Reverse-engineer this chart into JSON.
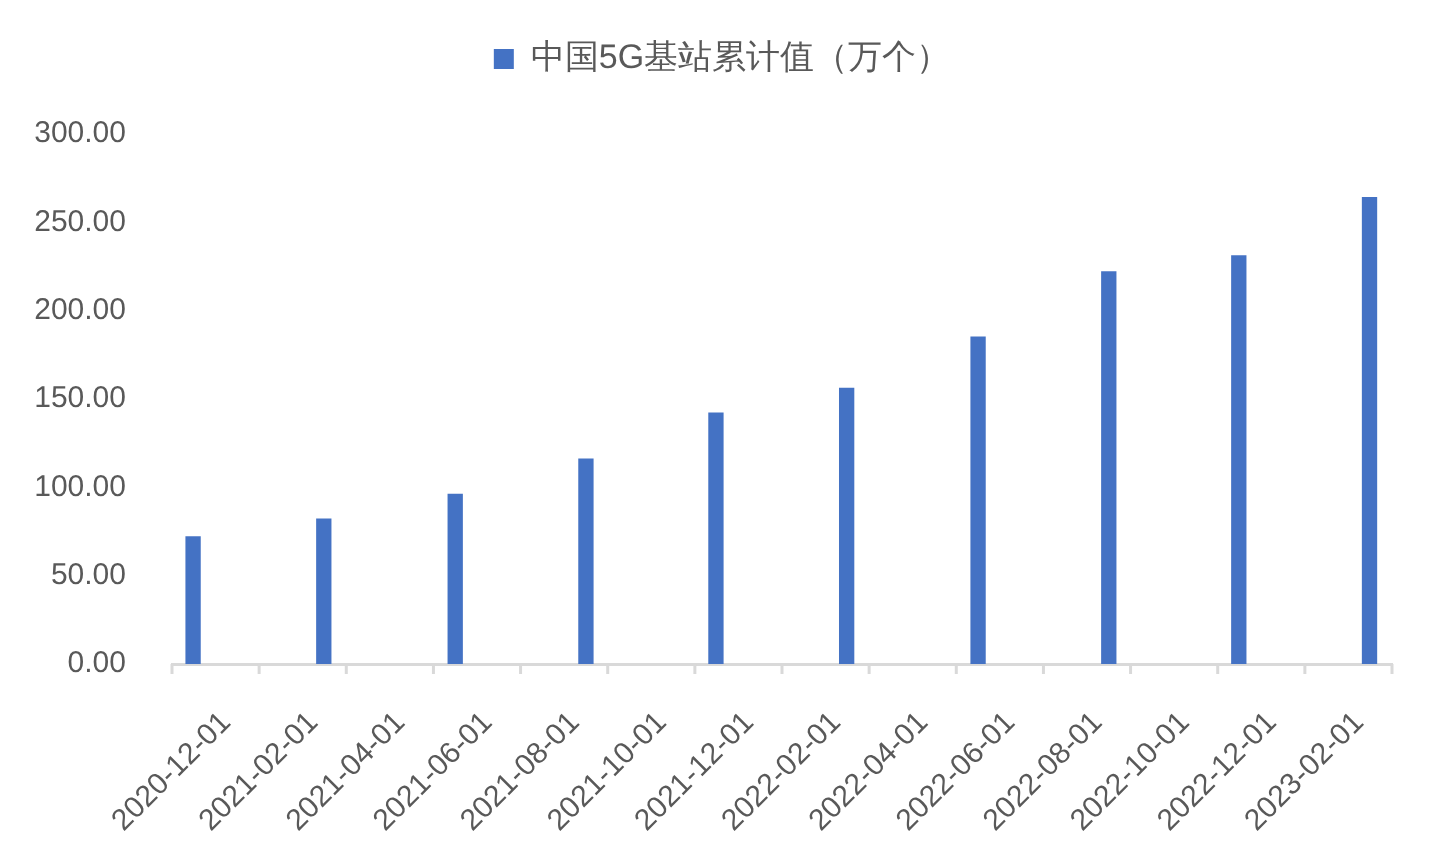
{
  "chart_data": {
    "type": "bar",
    "x": [
      "2020-12-16",
      "2021-03-16",
      "2021-06-16",
      "2021-09-16",
      "2021-12-16",
      "2022-03-16",
      "2022-06-16",
      "2022-09-16",
      "2022-12-16",
      "2023-03-16"
    ],
    "series": [
      {
        "name": "中国5G基站累计值（万个）",
        "color": "#4472c4",
        "values": [
          72,
          82,
          96,
          116,
          142,
          156,
          185,
          222,
          231,
          264
        ]
      }
    ],
    "xlim": [
      "2020-12-01",
      "2023-04-01"
    ],
    "xticks": [
      "2020-12-01",
      "2021-02-01",
      "2021-04-01",
      "2021-06-01",
      "2021-08-01",
      "2021-10-01",
      "2021-12-01",
      "2022-02-01",
      "2022-04-01",
      "2022-06-01",
      "2022-08-01",
      "2022-10-01",
      "2022-12-01",
      "2023-02-01",
      {
        "value": "2023-04-01",
        "label": null
      }
    ],
    "ylim": [
      0,
      300
    ],
    "yticks": [
      {
        "value": 0,
        "label": "0.00"
      },
      {
        "value": 50,
        "label": "50.00"
      },
      {
        "value": 100,
        "label": "100.00"
      },
      {
        "value": 150,
        "label": "150.00"
      },
      {
        "value": 200,
        "label": "200.00"
      },
      {
        "value": 250,
        "label": "250.00"
      },
      {
        "value": 300,
        "label": "300.00"
      }
    ],
    "legend": "top"
  }
}
